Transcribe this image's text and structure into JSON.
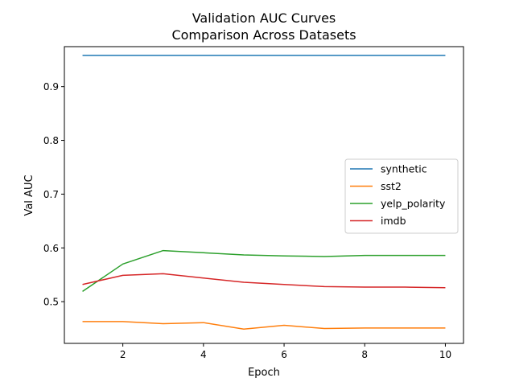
{
  "chart_data": {
    "type": "line",
    "title": "Validation AUC Curves",
    "subtitle": "Comparison Across Datasets",
    "xlabel": "Epoch",
    "ylabel": "Val AUC",
    "xlim": [
      0.55,
      10.45
    ],
    "ylim": [
      0.4224,
      0.9743
    ],
    "xticks": [
      2,
      4,
      6,
      8,
      10
    ],
    "yticks": [
      0.5,
      0.6,
      0.7,
      0.8,
      0.9
    ],
    "grid": false,
    "legend_position": "center-right",
    "x": [
      1,
      2,
      3,
      4,
      5,
      6,
      7,
      8,
      9,
      10
    ],
    "series": [
      {
        "name": "synthetic",
        "color": "#1f77b4",
        "values": [
          0.958,
          0.958,
          0.958,
          0.958,
          0.958,
          0.958,
          0.958,
          0.958,
          0.958,
          0.958
        ]
      },
      {
        "name": "sst2",
        "color": "#ff7f0e",
        "values": [
          0.463,
          0.463,
          0.459,
          0.461,
          0.449,
          0.456,
          0.45,
          0.451,
          0.451,
          0.451
        ]
      },
      {
        "name": "yelp_polarity",
        "color": "#2ca02c",
        "values": [
          0.519,
          0.57,
          0.595,
          0.591,
          0.587,
          0.585,
          0.584,
          0.586,
          0.586,
          0.586
        ]
      },
      {
        "name": "imdb",
        "color": "#d62728",
        "values": [
          0.532,
          0.549,
          0.552,
          0.544,
          0.536,
          0.532,
          0.528,
          0.527,
          0.527,
          0.526
        ]
      }
    ]
  }
}
